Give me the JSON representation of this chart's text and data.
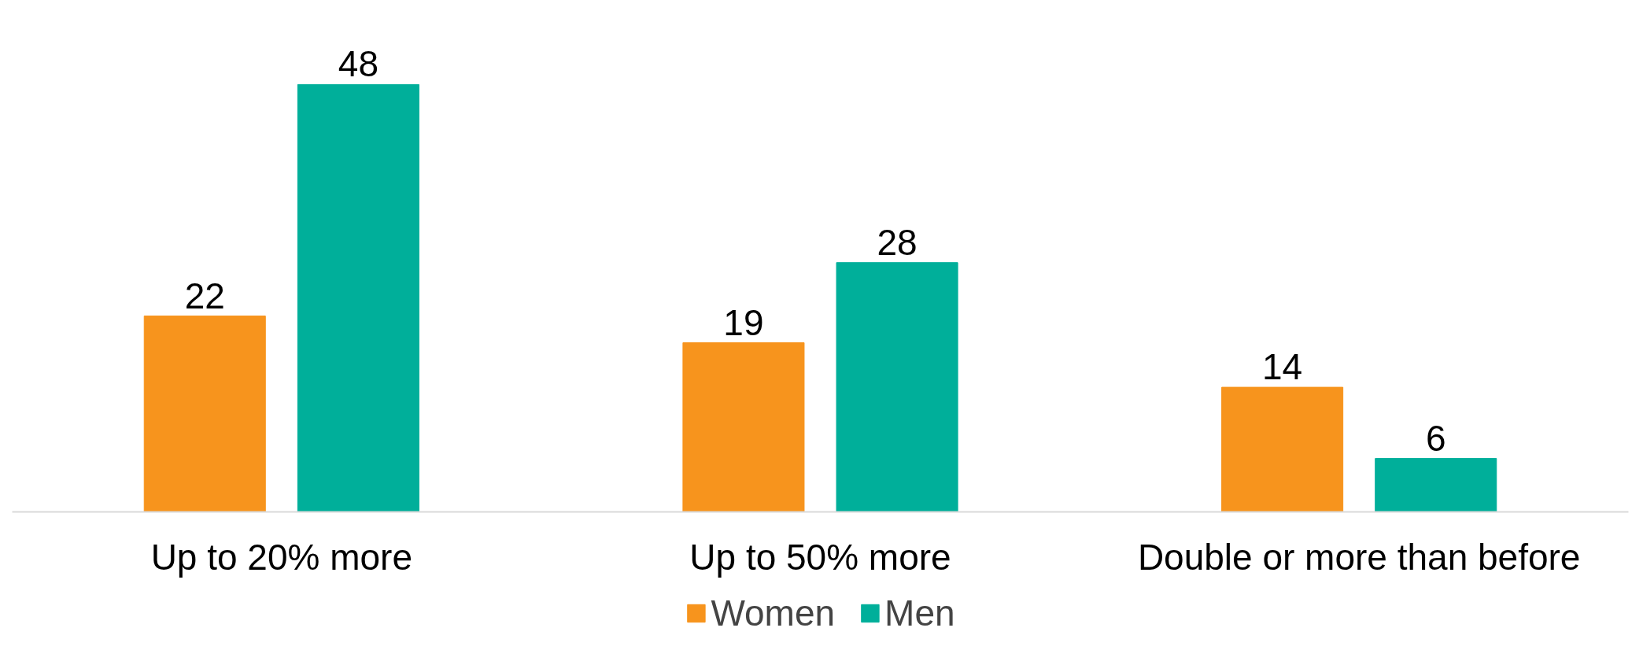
{
  "chart_data": {
    "type": "bar",
    "categories": [
      "Up to 20% more",
      "Up to 50% more",
      "Double or more than before"
    ],
    "series": [
      {
        "name": "Women",
        "color": "#f7941d",
        "values": [
          22,
          19,
          14
        ]
      },
      {
        "name": "Men",
        "color": "#00af9a",
        "values": [
          48,
          28,
          6
        ]
      }
    ],
    "data_labels": true,
    "grid": false,
    "legend": "bottom"
  }
}
